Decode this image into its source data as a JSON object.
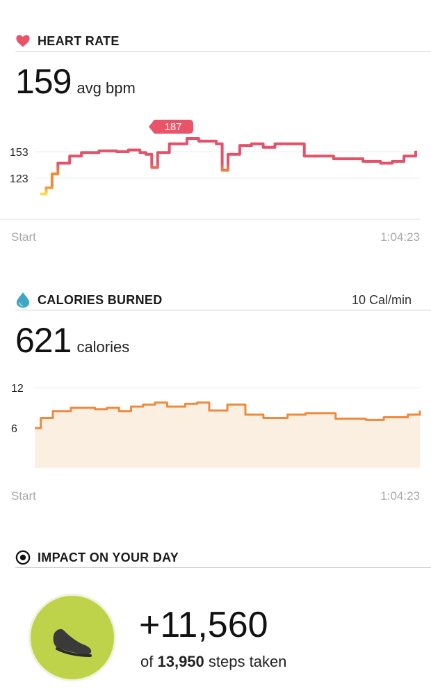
{
  "heart_rate": {
    "title": "HEART RATE",
    "value": "159",
    "unit": "avg bpm",
    "peak_label": "187",
    "start_label": "Start",
    "end_label": "1:04:23",
    "colors": {
      "high": "#e2536a",
      "mid": "#ef8a3c",
      "low": "#f4e04a"
    }
  },
  "calories": {
    "title": "CALORIES BURNED",
    "rate": "10 Cal/min",
    "value": "621",
    "unit": "calories",
    "start_label": "Start",
    "end_label": "1:04:23",
    "colors": {
      "line": "#ef8a3c",
      "fill": "#fbefe2"
    }
  },
  "impact": {
    "title": "IMPACT ON YOUR DAY",
    "steps_added": "+11,560",
    "of_label": "of",
    "steps_total": "13,950",
    "steps_suffix": "steps taken",
    "colors": {
      "circle": "#bfd34a"
    }
  },
  "chart_data": [
    {
      "type": "line",
      "title": "",
      "y_ticks": [
        123,
        153
      ],
      "x_labels": [
        "Start",
        "1:04:23"
      ],
      "x": [
        0,
        1,
        2,
        3,
        5,
        7,
        10,
        13,
        15,
        17,
        18,
        19,
        20,
        22,
        25,
        27,
        30,
        31,
        32,
        34,
        36,
        38,
        40,
        45,
        50,
        55,
        58,
        60,
        62,
        64
      ],
      "y": [
        105,
        112,
        128,
        140,
        148,
        152,
        154,
        153,
        155,
        152,
        150,
        135,
        152,
        162,
        168,
        165,
        162,
        132,
        150,
        160,
        162,
        158,
        162,
        148,
        145,
        142,
        140,
        142,
        148,
        154
      ],
      "annotations": [
        "187"
      ]
    },
    {
      "type": "area",
      "title": "",
      "y_ticks": [
        6,
        12
      ],
      "x_labels": [
        "Start",
        "1:04:23"
      ],
      "x": [
        0,
        1,
        3,
        6,
        10,
        12,
        14,
        16,
        18,
        20,
        22,
        25,
        27,
        29,
        32,
        35,
        38,
        42,
        45,
        50,
        55,
        58,
        62,
        64
      ],
      "y": [
        6,
        7.5,
        8.5,
        9,
        8.8,
        9,
        8.5,
        9.2,
        9.5,
        9.8,
        9.2,
        9.6,
        9.8,
        8.6,
        9.5,
        8,
        7.5,
        8,
        8.2,
        7.4,
        7.2,
        7.6,
        8,
        8.6
      ]
    }
  ]
}
